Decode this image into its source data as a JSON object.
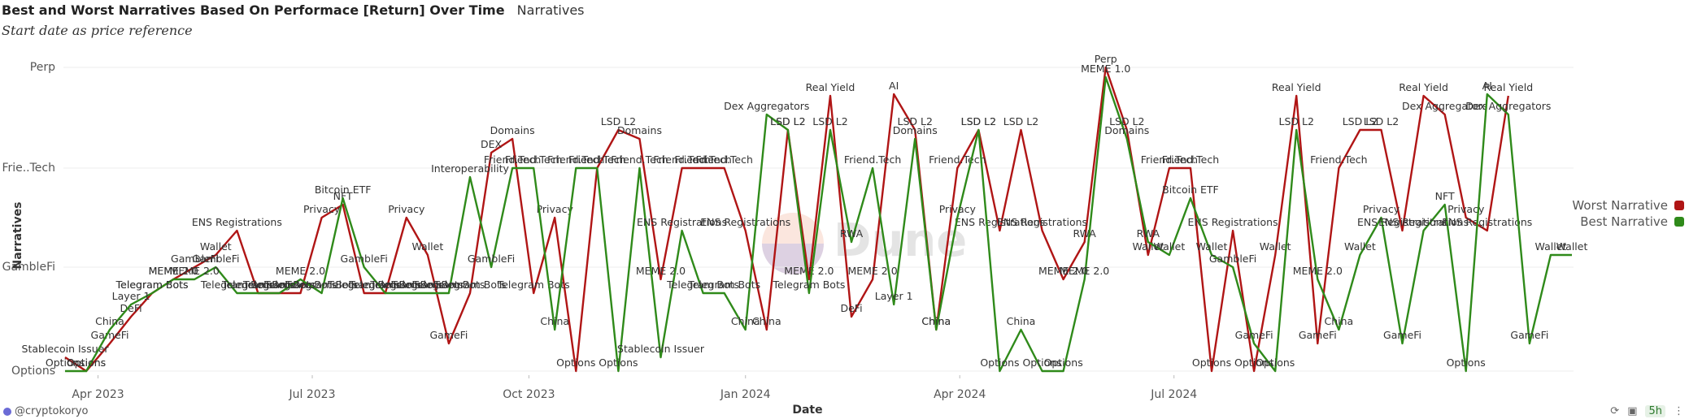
{
  "header": {
    "title": "Best and Worst Narratives Based On Performace [Return] Over Time",
    "viz_name": "Narratives",
    "subtitle": "Start date as price reference"
  },
  "footer": {
    "author": "@cryptokoryo",
    "age_badge": "5h",
    "watermark": "Dune"
  },
  "icons": [
    "refresh-icon",
    "camera-icon",
    "overflow-icon"
  ],
  "chart_data": {
    "type": "line",
    "title": "Best and Worst Narratives Based On Performace [Return] Over Time",
    "xlabel": "Date",
    "ylabel": "Narratives",
    "x_ticks": [
      "Apr 2023",
      "Jul 2023",
      "Oct 2023",
      "Jan 2024",
      "Apr 2024",
      "Jul 2024"
    ],
    "y_ticks": [
      "Perp",
      "Frie..Tech",
      "GambleFi",
      "Options"
    ],
    "legend_position": "right",
    "grid": true,
    "series": [
      {
        "name": "Worst Narrative",
        "color": "#b01515",
        "points": [
          [
            "2023-03-18",
            "Stablecoin Issuer"
          ],
          [
            "2023-03-27",
            "Options"
          ],
          [
            "2023-04-06",
            "GameFi"
          ],
          [
            "2023-04-15",
            "DeFi"
          ],
          [
            "2023-04-24",
            "Telegram Bots"
          ],
          [
            "2023-05-03",
            "MEME 2.0"
          ],
          [
            "2023-05-12",
            "GambleFi"
          ],
          [
            "2023-05-21",
            "Wallet"
          ],
          [
            "2023-05-30",
            "ENS Registrations"
          ],
          [
            "2023-06-08",
            "Telegram Bots"
          ],
          [
            "2023-06-17",
            "Telegram Bots"
          ],
          [
            "2023-06-26",
            "Telegram Bots"
          ],
          [
            "2023-07-05",
            "Privacy"
          ],
          [
            "2023-07-14",
            "NFT"
          ],
          [
            "2023-07-23",
            "Telegram Bots"
          ],
          [
            "2023-08-01",
            "Telegram Bots"
          ],
          [
            "2023-08-10",
            "Privacy"
          ],
          [
            "2023-08-19",
            "Wallet"
          ],
          [
            "2023-08-28",
            "GameFi"
          ],
          [
            "2023-09-06",
            "Telegram Bots"
          ],
          [
            "2023-09-15",
            "DEX"
          ],
          [
            "2023-09-24",
            "Domains"
          ],
          [
            "2023-10-03",
            "Telegram Bots"
          ],
          [
            "2023-10-12",
            "Privacy"
          ],
          [
            "2023-10-21",
            "Options"
          ],
          [
            "2023-10-30",
            "Friend.Tech"
          ],
          [
            "2023-11-08",
            "LSD L2"
          ],
          [
            "2023-11-17",
            "Domains"
          ],
          [
            "2023-11-26",
            "MEME 2.0"
          ],
          [
            "2023-12-05",
            "Friend.Tech"
          ],
          [
            "2023-12-14",
            "Friend.Tech"
          ],
          [
            "2023-12-23",
            "Friend.Tech"
          ],
          [
            "2024-01-01",
            "ENS Registrations"
          ],
          [
            "2024-01-10",
            "China"
          ],
          [
            "2024-01-19",
            "LSD L2"
          ],
          [
            "2024-01-28",
            "MEME 2.0"
          ],
          [
            "2024-02-06",
            "Real Yield"
          ],
          [
            "2024-02-15",
            "DeFi"
          ],
          [
            "2024-02-24",
            "MEME 2.0"
          ],
          [
            "2024-03-04",
            "AI"
          ],
          [
            "2024-03-13",
            "LSD L2"
          ],
          [
            "2024-03-22",
            "China"
          ],
          [
            "2024-03-31",
            "Friend.Tech"
          ],
          [
            "2024-04-09",
            "LSD L2"
          ],
          [
            "2024-04-18",
            "ENS Registrations"
          ],
          [
            "2024-04-27",
            "LSD L2"
          ],
          [
            "2024-05-06",
            "ENS Registrations"
          ],
          [
            "2024-05-15",
            "MEME 2.0"
          ],
          [
            "2024-05-24",
            "RWA"
          ],
          [
            "2024-06-02",
            "Perp"
          ],
          [
            "2024-06-11",
            "LSD L2"
          ],
          [
            "2024-06-20",
            "Wallet"
          ],
          [
            "2024-06-29",
            "Friend.Tech"
          ],
          [
            "2024-07-08",
            "Friend.Tech"
          ],
          [
            "2024-07-17",
            "Options"
          ],
          [
            "2024-07-26",
            "ENS Registrations"
          ],
          [
            "2024-08-04",
            "Options"
          ],
          [
            "2024-08-13",
            "Wallet"
          ],
          [
            "2024-08-22",
            "Real Yield"
          ],
          [
            "2024-08-31",
            "GameFi"
          ],
          [
            "2024-09-09",
            "Friend.Tech"
          ],
          [
            "2024-09-18",
            "LSD L2"
          ],
          [
            "2024-09-27",
            "LSD L2"
          ],
          [
            "2024-10-06",
            "ENS Registrations"
          ],
          [
            "2024-10-15",
            "Real Yield"
          ],
          [
            "2024-10-24",
            "Dex Aggregators"
          ],
          [
            "2024-11-02",
            "Privacy"
          ],
          [
            "2024-11-11",
            "ENS Registrations"
          ],
          [
            "2024-11-20",
            "Real Yield"
          ]
        ]
      },
      {
        "name": "Best Narrative",
        "color": "#2f8a1a",
        "points": [
          [
            "2023-03-18",
            "Options"
          ],
          [
            "2023-03-27",
            "Options"
          ],
          [
            "2023-04-06",
            "China"
          ],
          [
            "2023-04-15",
            "Layer 1"
          ],
          [
            "2023-04-24",
            "Telegram Bots"
          ],
          [
            "2023-05-03",
            "MEME 2.0"
          ],
          [
            "2023-05-12",
            "MEME 2.0"
          ],
          [
            "2023-05-21",
            "GambleFi"
          ],
          [
            "2023-05-30",
            "Telegram Bots"
          ],
          [
            "2023-06-08",
            "Telegram Bots"
          ],
          [
            "2023-06-17",
            "Telegram Bots"
          ],
          [
            "2023-06-26",
            "MEME 2.0"
          ],
          [
            "2023-07-05",
            "Telegram Bots"
          ],
          [
            "2023-07-14",
            "Bitcoin ETF"
          ],
          [
            "2023-07-23",
            "GambleFi"
          ],
          [
            "2023-08-01",
            "Telegram Bots"
          ],
          [
            "2023-08-10",
            "Telegram Bots"
          ],
          [
            "2023-08-19",
            "Telegram Bots"
          ],
          [
            "2023-08-28",
            "Telegram Bots"
          ],
          [
            "2023-09-06",
            "Interoperability"
          ],
          [
            "2023-09-15",
            "GambleFi"
          ],
          [
            "2023-09-24",
            "Friend.Tech"
          ],
          [
            "2023-10-03",
            "Friend.Tech"
          ],
          [
            "2023-10-12",
            "China"
          ],
          [
            "2023-10-21",
            "Friend.Tech"
          ],
          [
            "2023-10-30",
            "Friend.Tech"
          ],
          [
            "2023-11-08",
            "Options"
          ],
          [
            "2023-11-17",
            "Friend.Tech"
          ],
          [
            "2023-11-26",
            "Stablecoin Issuer"
          ],
          [
            "2023-12-05",
            "ENS Registrations"
          ],
          [
            "2023-12-14",
            "Telegram Bots"
          ],
          [
            "2023-12-23",
            "Telegram Bots"
          ],
          [
            "2024-01-01",
            "China"
          ],
          [
            "2024-01-10",
            "Dex Aggregators"
          ],
          [
            "2024-01-19",
            "LSD L2"
          ],
          [
            "2024-01-28",
            "Telegram Bots"
          ],
          [
            "2024-02-06",
            "LSD L2"
          ],
          [
            "2024-02-15",
            "RWA"
          ],
          [
            "2024-02-24",
            "Friend.Tech"
          ],
          [
            "2024-03-04",
            "Layer 1"
          ],
          [
            "2024-03-13",
            "Domains"
          ],
          [
            "2024-03-22",
            "China"
          ],
          [
            "2024-03-31",
            "Privacy"
          ],
          [
            "2024-04-09",
            "LSD L2"
          ],
          [
            "2024-04-18",
            "Options"
          ],
          [
            "2024-04-27",
            "China"
          ],
          [
            "2024-05-06",
            "Options"
          ],
          [
            "2024-05-15",
            "Options"
          ],
          [
            "2024-05-24",
            "MEME 2.0"
          ],
          [
            "2024-06-02",
            "MEME 1.0"
          ],
          [
            "2024-06-11",
            "Domains"
          ],
          [
            "2024-06-20",
            "RWA"
          ],
          [
            "2024-06-29",
            "Wallet"
          ],
          [
            "2024-07-08",
            "Bitcoin ETF"
          ],
          [
            "2024-07-17",
            "Wallet"
          ],
          [
            "2024-07-26",
            "GambleFi"
          ],
          [
            "2024-08-04",
            "GameFi"
          ],
          [
            "2024-08-13",
            "Options"
          ],
          [
            "2024-08-22",
            "LSD L2"
          ],
          [
            "2024-08-31",
            "MEME 2.0"
          ],
          [
            "2024-09-09",
            "China"
          ],
          [
            "2024-09-18",
            "Wallet"
          ],
          [
            "2024-09-27",
            "Privacy"
          ],
          [
            "2024-10-06",
            "GameFi"
          ],
          [
            "2024-10-15",
            "ENS Registrations"
          ],
          [
            "2024-10-24",
            "NFT"
          ],
          [
            "2024-11-02",
            "Options"
          ],
          [
            "2024-11-11",
            "AI"
          ],
          [
            "2024-11-20",
            "Dex Aggregators"
          ],
          [
            "2024-11-29",
            "GameFi"
          ],
          [
            "2024-12-08",
            "Wallet"
          ],
          [
            "2024-12-17",
            "Wallet"
          ]
        ]
      }
    ]
  }
}
